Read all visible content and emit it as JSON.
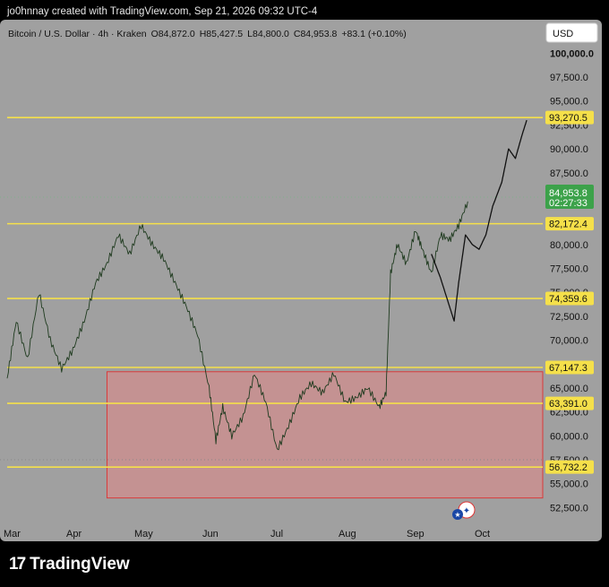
{
  "header": {
    "credit": "jo0hnnay created with TradingView.com, Sep 21, 2026 09:32 UTC-4"
  },
  "footer": {
    "brand": "TradingView",
    "logo_mark": "17"
  },
  "chart_data": {
    "type": "line",
    "symbol_line": {
      "name": "Bitcoin / U.S. Dollar · 4h · Kraken",
      "open": "O84,872.0",
      "high": "H85,427.5",
      "low": "L84,800.0",
      "close": "C84,953.8",
      "change": "+83.1 (+0.10%)"
    },
    "currency_button": "USD",
    "x_ticks": [
      "Mar",
      "Apr",
      "May",
      "Jun",
      "Jul",
      "Aug",
      "Sep",
      "Oct"
    ],
    "y_ticks": [
      {
        "value": 100000,
        "label": "100,000.0"
      },
      {
        "value": 97500,
        "label": "97,500.0"
      },
      {
        "value": 95000,
        "label": "95,000.0"
      },
      {
        "value": 92500,
        "label": "92,500.0"
      },
      {
        "value": 90000,
        "label": "90,000.0"
      },
      {
        "value": 87500,
        "label": "87,500.0"
      },
      {
        "value": 85000,
        "label": "85,000.0"
      },
      {
        "value": 82500,
        "label": "82,500.0"
      },
      {
        "value": 80000,
        "label": "80,000.0"
      },
      {
        "value": 77500,
        "label": "77,500.0"
      },
      {
        "value": 75000,
        "label": "75,000.0"
      },
      {
        "value": 72500,
        "label": "72,500.0"
      },
      {
        "value": 70000,
        "label": "70,000.0"
      },
      {
        "value": 67500,
        "label": "67,500.0"
      },
      {
        "value": 65000,
        "label": "65,000.0"
      },
      {
        "value": 62500,
        "label": "62,500.0"
      },
      {
        "value": 60000,
        "label": "60,000.0"
      },
      {
        "value": 57500,
        "label": "57,500.0"
      },
      {
        "value": 55000,
        "label": "55,000.0"
      },
      {
        "value": 52500,
        "label": "52,500.0"
      }
    ],
    "ylim": [
      51500,
      103500
    ],
    "horizontal_levels": [
      {
        "value": 93270.5,
        "label": "93,270.5"
      },
      {
        "value": 82172.4,
        "label": "82,172.4"
      },
      {
        "value": 74359.6,
        "label": "74,359.6"
      },
      {
        "value": 67147.3,
        "label": "67,147.3"
      },
      {
        "value": 63391.0,
        "label": "63,391.0"
      },
      {
        "value": 56732.2,
        "label": "56,732.2"
      }
    ],
    "level_color": "#f5e04a",
    "last_price": {
      "value": 84953.8,
      "label": "84,953.8",
      "countdown": "02:27:33",
      "color": "#3ca24a"
    },
    "zone": {
      "from": "Apr 15",
      "to": "Oct 31",
      "low": 53500,
      "high": 66700,
      "fill": "#f08080",
      "border": "#d93a3a"
    },
    "history_series": {
      "name": "",
      "color": "#1e3a1e",
      "dates": [
        "Mar 1",
        "Mar 5",
        "Mar 10",
        "Mar 15",
        "Mar 20",
        "Mar 25",
        "Mar 30",
        "Apr 5",
        "Apr 10",
        "Apr 15",
        "Apr 20",
        "Apr 25",
        "Apr 30",
        "May 5",
        "May 10",
        "May 15",
        "May 20",
        "May 25",
        "May 30",
        "Jun 3",
        "Jun 6",
        "Jun 10",
        "Jun 15",
        "Jun 20",
        "Jun 25",
        "Jun 30",
        "Jul 5",
        "Jul 10",
        "Jul 15",
        "Jul 20",
        "Jul 25",
        "Jul 30",
        "Aug 5",
        "Aug 10",
        "Aug 15",
        "Aug 18",
        "Aug 20",
        "Aug 23",
        "Aug 27",
        "Aug 31",
        "Sep 4",
        "Sep 8",
        "Sep 12",
        "Sep 16",
        "Sep 20",
        "Sep 24"
      ],
      "values": [
        66000,
        72000,
        68000,
        75000,
        70000,
        67000,
        69000,
        72000,
        76000,
        78000,
        81000,
        79000,
        82000,
        80000,
        78500,
        76000,
        73500,
        70500,
        65000,
        59500,
        63000,
        60000,
        62000,
        66500,
        63500,
        58500,
        61000,
        64000,
        65500,
        64500,
        66500,
        63500,
        64000,
        65000,
        63000,
        64500,
        77000,
        80000,
        78000,
        81500,
        79500,
        77000,
        81000,
        80500,
        82000,
        84500
      ]
    },
    "projection_series": {
      "name": "",
      "color": "#111111",
      "dates": [
        "Sep 8",
        "Sep 12",
        "Sep 16",
        "Sep 18",
        "Sep 20",
        "Sep 23",
        "Sep 26",
        "Sep 29",
        "Oct 2",
        "Oct 5",
        "Oct 9",
        "Oct 12",
        "Oct 15",
        "Oct 18",
        "Oct 20"
      ],
      "values": [
        79000,
        76500,
        73500,
        72000,
        76000,
        81000,
        80000,
        79500,
        81000,
        84000,
        86500,
        90000,
        89000,
        91500,
        93000
      ]
    }
  }
}
